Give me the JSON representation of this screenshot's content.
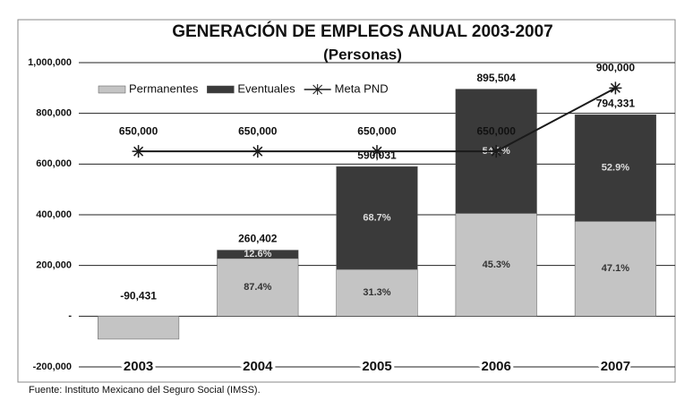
{
  "chart_data": {
    "type": "stacked_bar_line",
    "title": "GENERACIÓN DE EMPLEOS ANUAL 2003-2007",
    "subtitle": "(Personas)",
    "categories": [
      "2003",
      "2004",
      "2005",
      "2006",
      "2007"
    ],
    "series": [
      {
        "name": "Permanentes",
        "color": "#c4c4c4",
        "values": [
          -90431,
          227591,
          184680,
          405663,
          374130
        ],
        "share_labels": [
          null,
          "87.4%",
          "31.3%",
          "45.3%",
          "47.1%"
        ]
      },
      {
        "name": "Eventuales",
        "color": "#3a3a3a",
        "values": [
          0,
          32811,
          405351,
          489841,
          420201
        ],
        "share_labels": [
          null,
          "12.6%",
          "68.7%",
          "54.7%",
          "52.9%"
        ]
      },
      {
        "name": "Meta PND",
        "type": "line",
        "color": "#1a1a1a",
        "values": [
          650000,
          650000,
          650000,
          650000,
          900000
        ],
        "value_labels": [
          "650,000",
          "650,000",
          "650,000",
          "650,000",
          "900,000"
        ]
      }
    ],
    "totals": [
      -90431,
      260402,
      590031,
      895504,
      794331
    ],
    "total_labels": [
      "-90,431",
      "260,402",
      "590,031",
      "895,504",
      "794,331"
    ],
    "ylim": [
      -200000,
      1000000
    ],
    "yticks": [
      {
        "value": -200000,
        "label": "-200,000"
      },
      {
        "value": 0,
        "label": "-"
      },
      {
        "value": 200000,
        "label": "200,000"
      },
      {
        "value": 400000,
        "label": "400,000"
      },
      {
        "value": 600000,
        "label": "600,000"
      },
      {
        "value": 800000,
        "label": "800,000"
      },
      {
        "value": 1000000,
        "label": "1,000,000"
      }
    ],
    "grid": true,
    "legend": "top-left",
    "source": "Fuente: Instituto Mexicano del Seguro Social (IMSS)."
  }
}
